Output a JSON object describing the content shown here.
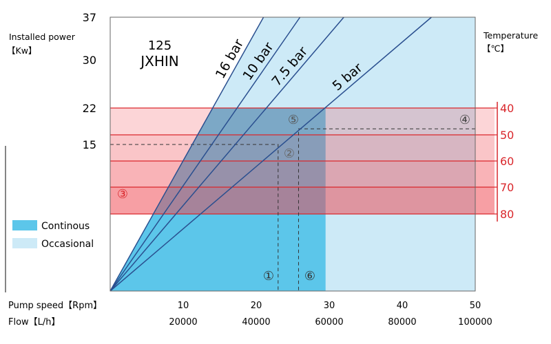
{
  "chart_data": {
    "type": "line",
    "title": "125\nJXHIN",
    "title_lines": [
      "125",
      "JXHIN"
    ],
    "y_left": {
      "label_lines": [
        "Installed power",
        "【Kw】"
      ],
      "ticks": [
        37,
        30,
        22,
        15
      ]
    },
    "y_right": {
      "label_lines": [
        "Temperature",
        "【℃】"
      ],
      "ticks": [
        40,
        50,
        60,
        70,
        80
      ],
      "color": "#d9262b"
    },
    "x_axis": {
      "rows": [
        {
          "label": "Pump speed【Rpm】",
          "ticks": [
            "10",
            "20",
            "30",
            "40",
            "50"
          ]
        },
        {
          "label": "Flow【L/h】",
          "ticks": [
            "20000",
            "40000",
            "60000",
            "80000",
            "100000"
          ]
        }
      ],
      "xlim": [
        0,
        50
      ]
    },
    "ylim": [
      0,
      37
    ],
    "series": [
      {
        "name": "16 bar",
        "x": [
          0,
          21
        ],
        "y": [
          0,
          37
        ]
      },
      {
        "name": "10 bar",
        "x": [
          0,
          26
        ],
        "y": [
          0,
          37
        ]
      },
      {
        "name": "7.5 bar",
        "x": [
          0,
          32
        ],
        "y": [
          0,
          37
        ]
      },
      {
        "name": "5 bar",
        "x": [
          0,
          44
        ],
        "y": [
          0,
          37
        ]
      }
    ],
    "temperature_bands": [
      40,
      50,
      60,
      70,
      80
    ],
    "continuous_limit_rpm": 29.5,
    "reference_lines": [
      {
        "power": 15,
        "rpm": 23
      },
      {
        "power": 18,
        "rpm": 25.8
      }
    ],
    "markers": [
      "①",
      "②",
      "③",
      "④",
      "⑤",
      "⑥"
    ],
    "legend": [
      {
        "label": "Continous",
        "color": "#5cc6ea"
      },
      {
        "label": "Occasional",
        "color": "#cdeaf7"
      }
    ],
    "legend_position": "left",
    "colors": {
      "line": "#2a4f8f",
      "band_line": "#d9262b",
      "continuous": "#5cc6ea",
      "occasional": "#cdeaf7"
    }
  }
}
